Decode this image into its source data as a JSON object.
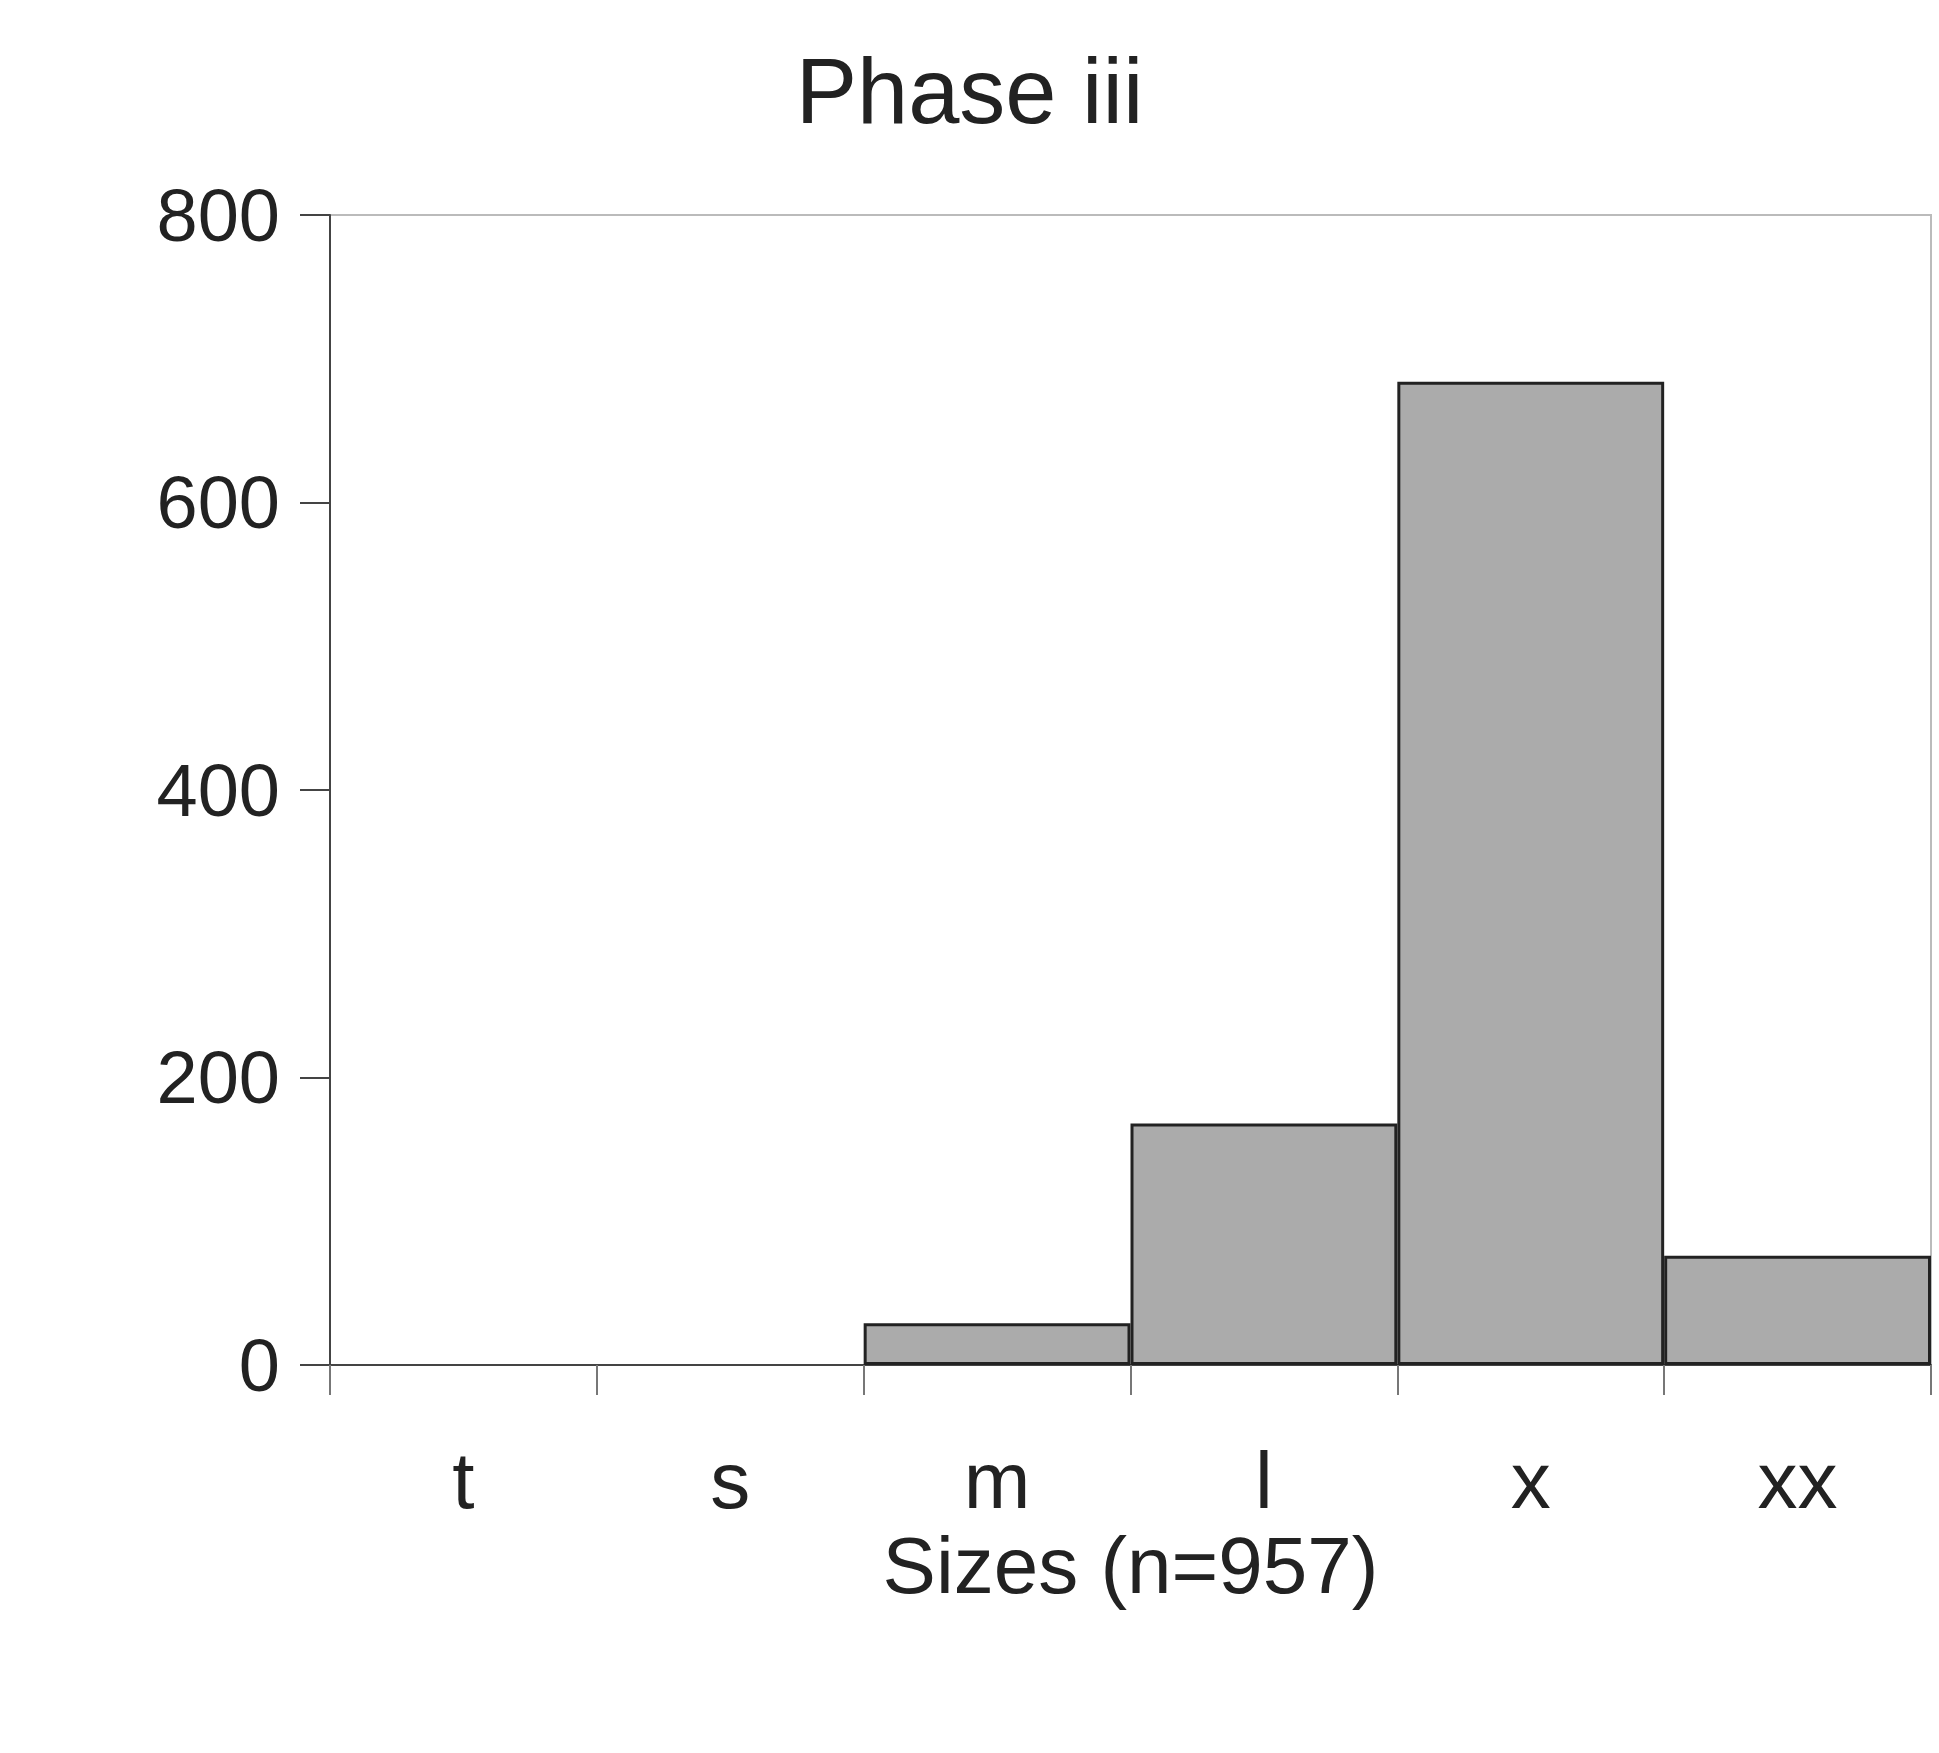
{
  "chart_data": {
    "type": "bar",
    "title": "Phase iii",
    "xlabel": "Sizes (n=957)",
    "categories": [
      "t",
      "s",
      "m",
      "l",
      "x",
      "xx"
    ],
    "values": [
      0,
      0,
      29,
      168,
      684,
      76
    ],
    "color": "#ababab",
    "ylim": [
      0,
      800
    ],
    "yticks": [
      0,
      200,
      400,
      600,
      800
    ],
    "grid": false
  }
}
